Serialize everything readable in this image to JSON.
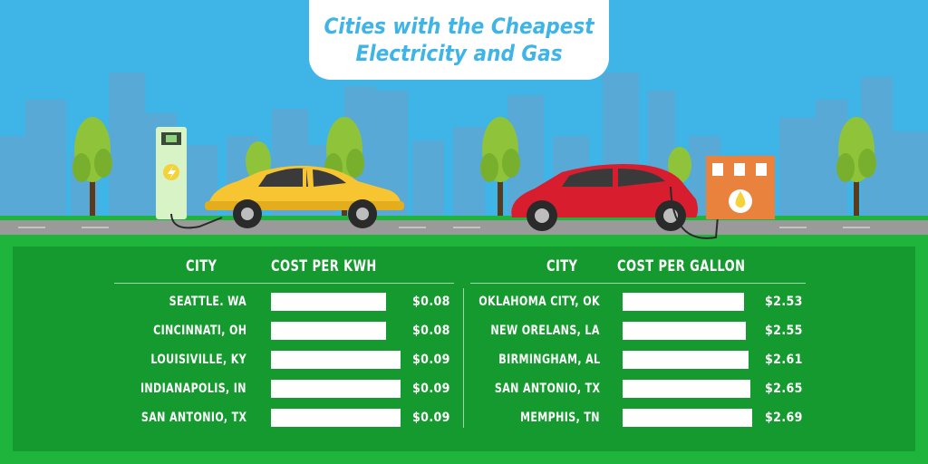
{
  "title": {
    "line1": "Cities with the Cheapest",
    "line2": "Electricity and Gas"
  },
  "colors": {
    "sky": "#3fb4e6",
    "panel": "#149a2e",
    "grass": "#1fb43c",
    "road": "#9a9a9a",
    "electric_car": "#f7c531",
    "gas_car": "#d81e2e",
    "charger": "#d8f3c5",
    "gas_pump": "#e8823c"
  },
  "chart_data": [
    {
      "type": "bar",
      "orientation": "horizontal",
      "headers": {
        "category": "CITY",
        "value": "COST PER KWH"
      },
      "categories": [
        "SEATTLE. WA",
        "CINCINNATI, OH",
        "LOUISIVILLE, KY",
        "INDIANAPOLIS, IN",
        "SAN ANTONIO, TX"
      ],
      "values": [
        0.08,
        0.08,
        0.09,
        0.09,
        0.09
      ],
      "value_labels": [
        "$0.08",
        "$0.08",
        "$0.09",
        "$0.09",
        "$0.09"
      ]
    },
    {
      "type": "bar",
      "orientation": "horizontal",
      "headers": {
        "category": "CITY",
        "value": "COST PER GALLON"
      },
      "categories": [
        "OKLAHOMA CITY, OK",
        "NEW ORELANS, LA",
        "BIRMINGHAM, AL",
        "SAN ANTONIO, TX",
        "MEMPHIS, TN"
      ],
      "values": [
        2.53,
        2.55,
        2.61,
        2.65,
        2.69
      ],
      "value_labels": [
        "$2.53",
        "$2.55",
        "$2.61",
        "$2.65",
        "$2.69"
      ]
    }
  ]
}
